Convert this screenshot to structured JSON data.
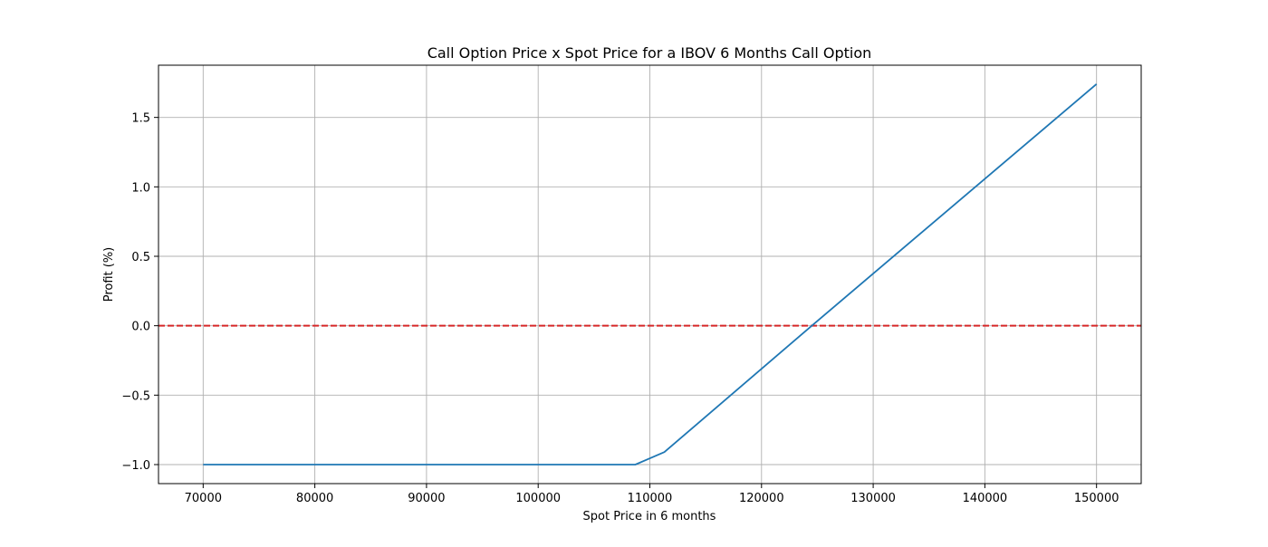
{
  "chart_data": {
    "type": "line",
    "title": "Call Option Price x Spot Price for a IBOV 6 Months Call Option",
    "xlabel": "Spot Price in 6 months",
    "ylabel": "Profit (%)",
    "xlim": [
      66000,
      154000
    ],
    "ylim": [
      -1.137,
      1.876
    ],
    "xticks": [
      70000,
      80000,
      90000,
      100000,
      110000,
      120000,
      130000,
      140000,
      150000
    ],
    "yticks": [
      -1.0,
      -0.5,
      0.0,
      0.5,
      1.0,
      1.5
    ],
    "xtick_labels": [
      "70000",
      "80000",
      "90000",
      "100000",
      "110000",
      "120000",
      "130000",
      "140000",
      "150000"
    ],
    "ytick_labels": [
      "−1.0",
      "−0.5",
      "0.0",
      "0.5",
      "1.0",
      "1.5"
    ],
    "grid": true,
    "series": [
      {
        "color": "#1f77b4",
        "style": "solid",
        "x": [
          70000,
          108700,
          111300,
          124500,
          150000
        ],
        "y": [
          -1.0,
          -1.0,
          -0.91,
          0.0,
          1.74
        ]
      }
    ],
    "reference_lines": [
      {
        "orientation": "horizontal",
        "y": 0.0,
        "color": "#d62728",
        "style": "dashed"
      }
    ]
  }
}
